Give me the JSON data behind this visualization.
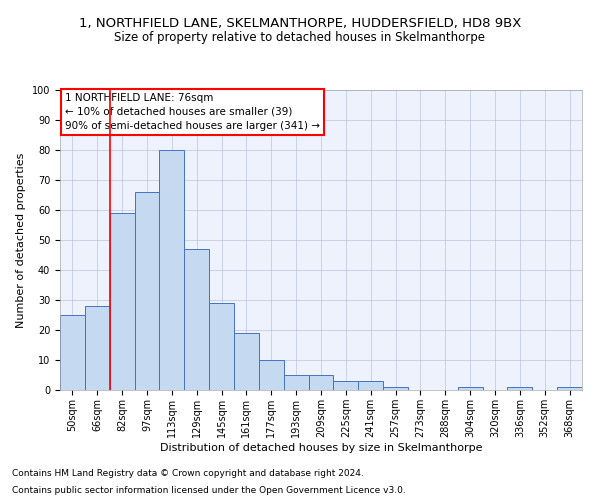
{
  "title": "1, NORTHFIELD LANE, SKELMANTHORPE, HUDDERSFIELD, HD8 9BX",
  "subtitle": "Size of property relative to detached houses in Skelmanthorpe",
  "xlabel": "Distribution of detached houses by size in Skelmanthorpe",
  "ylabel": "Number of detached properties",
  "categories": [
    "50sqm",
    "66sqm",
    "82sqm",
    "97sqm",
    "113sqm",
    "129sqm",
    "145sqm",
    "161sqm",
    "177sqm",
    "193sqm",
    "209sqm",
    "225sqm",
    "241sqm",
    "257sqm",
    "273sqm",
    "288sqm",
    "304sqm",
    "320sqm",
    "336sqm",
    "352sqm",
    "368sqm"
  ],
  "values": [
    25,
    28,
    59,
    66,
    80,
    47,
    29,
    19,
    10,
    5,
    5,
    3,
    3,
    1,
    0,
    0,
    1,
    0,
    1,
    0,
    1
  ],
  "bar_color": "#c5d9f1",
  "bar_edge_color": "#4472c4",
  "ylim": [
    0,
    100
  ],
  "yticks": [
    0,
    10,
    20,
    30,
    40,
    50,
    60,
    70,
    80,
    90,
    100
  ],
  "property_label": "1 NORTHFIELD LANE: 76sqm",
  "annotation_line1": "← 10% of detached houses are smaller (39)",
  "annotation_line2": "90% of semi-detached houses are larger (341) →",
  "vline_x_index": 1.5,
  "footer1": "Contains HM Land Registry data © Crown copyright and database right 2024.",
  "footer2": "Contains public sector information licensed under the Open Government Licence v3.0.",
  "bg_color": "#eef2fc",
  "grid_color": "#b0b8d8",
  "title_fontsize": 9.5,
  "subtitle_fontsize": 8.5,
  "axis_label_fontsize": 8,
  "tick_fontsize": 7,
  "annotation_fontsize": 7.5,
  "footer_fontsize": 6.5
}
